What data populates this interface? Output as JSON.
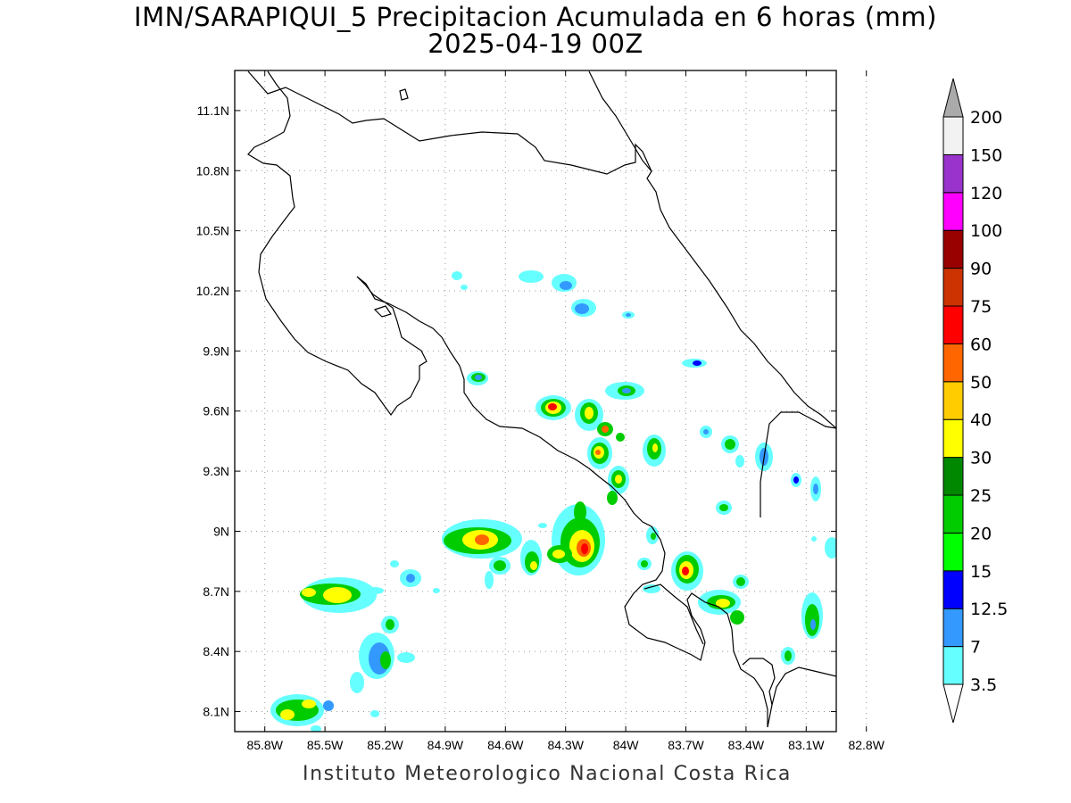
{
  "title_line1": "IMN/SARAPIQUI_5 Precipitacion Acumulada en 6 horas (mm)",
  "title_line2": "2025-04-19 00Z",
  "footer": "Instituto Meteorologico Nacional Costa Rica",
  "axes": {
    "lat_ticks": [
      "11.1N",
      "10.8N",
      "10.5N",
      "10.2N",
      "9.9N",
      "9.6N",
      "9.3N",
      "9N",
      "8.7N",
      "8.4N",
      "8.1N"
    ],
    "lon_ticks": [
      "85.8W",
      "85.5W",
      "85.2W",
      "84.9W",
      "84.6W",
      "84.3W",
      "84W",
      "83.7W",
      "83.4W",
      "83.1W",
      "82.8W"
    ],
    "lat_range": [
      8.0,
      11.3
    ],
    "lon_range": [
      -85.95,
      -82.95
    ],
    "grid": true
  },
  "colorbar": {
    "labels": [
      "3.5",
      "7",
      "12.5",
      "15",
      "20",
      "25",
      "30",
      "40",
      "50",
      "60",
      "75",
      "90",
      "100",
      "120",
      "150",
      "200"
    ],
    "colors": [
      "#ffffff",
      "#66ffff",
      "#3399ff",
      "#0000ff",
      "#00ff00",
      "#00cc00",
      "#008800",
      "#ffff00",
      "#ffcc00",
      "#ff6600",
      "#ff0000",
      "#cc3300",
      "#990000",
      "#ff00ff",
      "#9933cc",
      "#f2f2f2",
      "#aaaaaa"
    ]
  }
}
